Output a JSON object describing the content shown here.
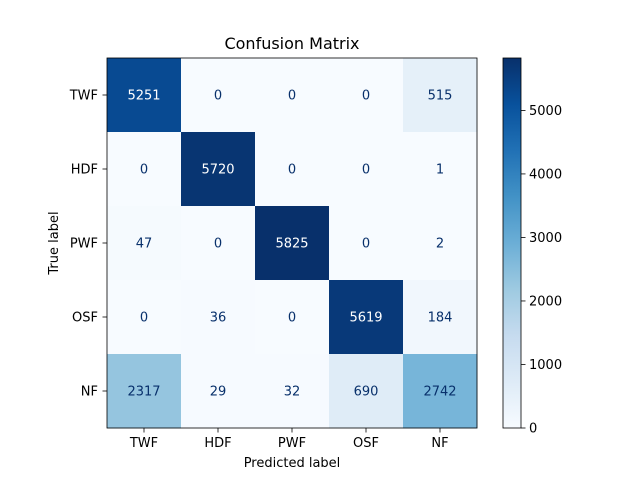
{
  "chart_data": {
    "type": "heatmap",
    "title": "Confusion Matrix",
    "xlabel": "Predicted label",
    "ylabel": "True label",
    "x_categories": [
      "TWF",
      "HDF",
      "PWF",
      "OSF",
      "NF"
    ],
    "y_categories": [
      "TWF",
      "HDF",
      "PWF",
      "OSF",
      "NF"
    ],
    "values": [
      [
        5251,
        0,
        0,
        0,
        515
      ],
      [
        0,
        5720,
        0,
        0,
        1
      ],
      [
        47,
        0,
        5825,
        0,
        2
      ],
      [
        0,
        36,
        0,
        5619,
        184
      ],
      [
        2317,
        29,
        32,
        690,
        2742
      ]
    ],
    "colormap": "Blues",
    "colorbar": {
      "ticks": [
        0,
        1000,
        2000,
        3000,
        4000,
        5000
      ],
      "range": [
        0,
        5825
      ]
    },
    "grid": false
  }
}
